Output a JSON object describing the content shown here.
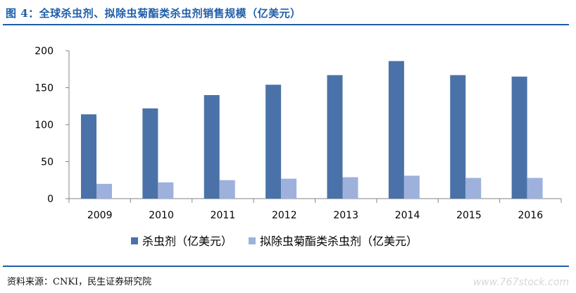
{
  "figure_title": "图 4：全球杀虫剂、拟除虫菊酯类杀虫剂销售规模（亿美元）",
  "source": "资料来源：CNKI，民生证券研究院",
  "watermark": "www.767stock.com",
  "colors": {
    "series1": "#4a72a8",
    "series2": "#9eb1dd",
    "title": "#1f5ea8",
    "axis": "#868686"
  },
  "chart_data": {
    "type": "bar",
    "categories": [
      "2009",
      "2010",
      "2011",
      "2012",
      "2013",
      "2014",
      "2015",
      "2016"
    ],
    "series": [
      {
        "name": "杀虫剂（亿美元）",
        "values": [
          114,
          122,
          140,
          154,
          167,
          186,
          167,
          165
        ]
      },
      {
        "name": "拟除虫菊酯类杀虫剂（亿美元）",
        "values": [
          20,
          22,
          25,
          27,
          29,
          31,
          28,
          28
        ]
      }
    ],
    "yticks": [
      0,
      50,
      100,
      150,
      200
    ],
    "ylim": [
      0,
      200
    ],
    "grid": false,
    "legend_position": "bottom"
  }
}
